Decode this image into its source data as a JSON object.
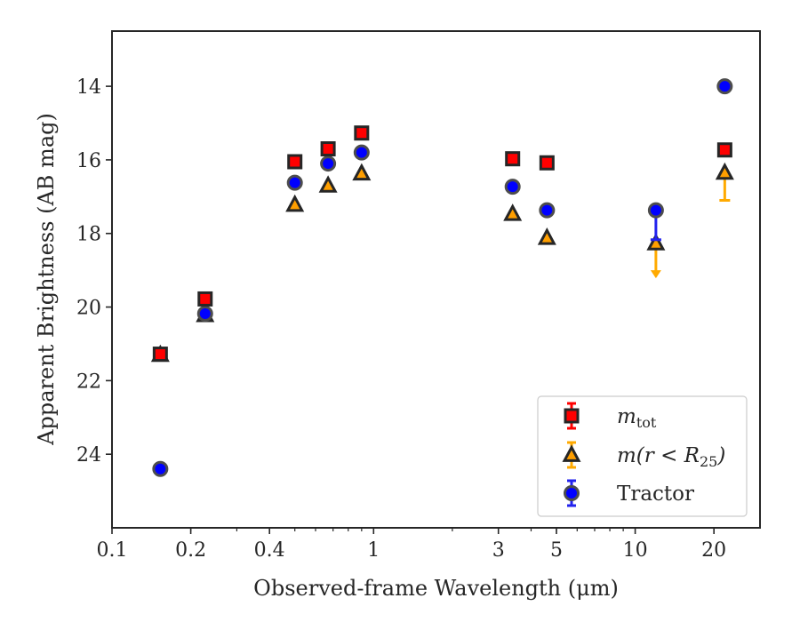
{
  "chart_data": {
    "type": "scatter",
    "xlabel": "Observed-frame Wavelength (μm)",
    "ylabel": "Apparent Brightness (AB mag)",
    "xscale": "log",
    "xlim": [
      0.1,
      30
    ],
    "ylim": [
      26.0,
      12.5
    ],
    "y_inverted": true,
    "xticks": [
      {
        "value": 0.1,
        "label": "0.1"
      },
      {
        "value": 0.2,
        "label": "0.2"
      },
      {
        "value": 0.4,
        "label": "0.4"
      },
      {
        "value": 1,
        "label": "1"
      },
      {
        "value": 3,
        "label": "3"
      },
      {
        "value": 5,
        "label": "5"
      },
      {
        "value": 10,
        "label": "10"
      },
      {
        "value": 20,
        "label": "20"
      }
    ],
    "yticks": [
      {
        "value": 14,
        "label": "14"
      },
      {
        "value": 16,
        "label": "16"
      },
      {
        "value": 18,
        "label": "18"
      },
      {
        "value": 20,
        "label": "20"
      },
      {
        "value": 22,
        "label": "22"
      },
      {
        "value": 24,
        "label": "24"
      }
    ],
    "grid": false,
    "legend_position": "lower-right",
    "series": [
      {
        "name": "m_tot",
        "legend_main": "m",
        "legend_sub": "tot",
        "marker": "square",
        "color": "#ff0000",
        "edge_color": "#262626",
        "error_color": "#ff0000",
        "points": [
          {
            "x": 0.153,
            "y": 21.28
          },
          {
            "x": 0.227,
            "y": 19.78
          },
          {
            "x": 0.5,
            "y": 16.05
          },
          {
            "x": 0.67,
            "y": 15.7
          },
          {
            "x": 0.9,
            "y": 15.27
          },
          {
            "x": 3.4,
            "y": 15.97
          },
          {
            "x": 4.6,
            "y": 16.08
          },
          {
            "x": 22,
            "y": 15.73
          }
        ]
      },
      {
        "name": "m(r < R_25)",
        "legend_main": "m(r < R",
        "legend_sub": "25",
        "legend_tail": ")",
        "marker": "triangle",
        "color": "#ff9f00",
        "edge_color": "#262626",
        "error_color": "#ffaa00",
        "points": [
          {
            "x": 0.153,
            "y": 21.3
          },
          {
            "x": 0.227,
            "y": 20.22
          },
          {
            "x": 0.5,
            "y": 17.22
          },
          {
            "x": 0.67,
            "y": 16.7
          },
          {
            "x": 0.9,
            "y": 16.37
          },
          {
            "x": 3.4,
            "y": 17.47
          },
          {
            "x": 4.6,
            "y": 18.12
          },
          {
            "x": 12,
            "y": 18.27,
            "yerr_down": 0.9,
            "upper_limit": true
          },
          {
            "x": 22,
            "y": 16.35,
            "yerr_down": 0.75
          }
        ]
      },
      {
        "name": "Tractor",
        "marker": "circle",
        "color": "#0000ff",
        "edge_color": "#4d4d4d",
        "error_color": "#2222ee",
        "points": [
          {
            "x": 0.153,
            "y": 24.4
          },
          {
            "x": 0.227,
            "y": 20.18
          },
          {
            "x": 0.5,
            "y": 16.62
          },
          {
            "x": 0.67,
            "y": 16.1
          },
          {
            "x": 0.9,
            "y": 15.8
          },
          {
            "x": 3.4,
            "y": 16.73
          },
          {
            "x": 4.6,
            "y": 17.37
          },
          {
            "x": 12,
            "y": 17.37,
            "yerr_down": 0.8
          },
          {
            "x": 22,
            "y": 14.0
          }
        ]
      }
    ]
  }
}
